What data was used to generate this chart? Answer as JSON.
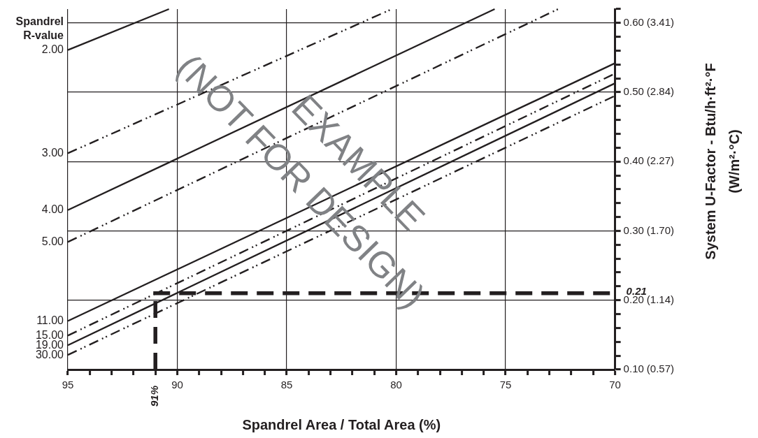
{
  "chart_data": {
    "type": "line",
    "xlabel": "Spandrel Area / Total Area (%)",
    "y2label": "System U-Factor - Btu/h·ft²·°F\n(W/m²·°C)",
    "legend_title": "Spandrel\nR-value",
    "xlim": [
      95,
      70
    ],
    "xticks": [
      95,
      {
        "value": 94,
        "label": null
      },
      {
        "value": 93,
        "label": null
      },
      {
        "value": 92,
        "label": null
      },
      {
        "value": 91,
        "label": null
      },
      90,
      {
        "value": 89,
        "label": null
      },
      {
        "value": 88,
        "label": null
      },
      {
        "value": 87,
        "label": null
      },
      {
        "value": 86,
        "label": null
      },
      85,
      {
        "value": 84,
        "label": null
      },
      {
        "value": 83,
        "label": null
      },
      {
        "value": 82,
        "label": null
      },
      {
        "value": 81,
        "label": null
      },
      80,
      {
        "value": 79,
        "label": null
      },
      {
        "value": 78,
        "label": null
      },
      {
        "value": 77,
        "label": null
      },
      {
        "value": 76,
        "label": null
      },
      75,
      {
        "value": 74,
        "label": null
      },
      {
        "value": 73,
        "label": null
      },
      {
        "value": 72,
        "label": null
      },
      {
        "value": 71,
        "label": null
      },
      70
    ],
    "ylim": [
      0.1,
      0.62
    ],
    "yticks": [
      {
        "value": 0.1,
        "label": "0.10"
      },
      {
        "value": 0.12,
        "label": null
      },
      {
        "value": 0.14,
        "label": null
      },
      {
        "value": 0.16,
        "label": null
      },
      {
        "value": 0.18,
        "label": null
      },
      {
        "value": 0.2,
        "label": "0.20"
      },
      {
        "value": 0.22,
        "label": null
      },
      {
        "value": 0.24,
        "label": null
      },
      {
        "value": 0.26,
        "label": null
      },
      {
        "value": 0.28,
        "label": null
      },
      {
        "value": 0.3,
        "label": "0.30"
      },
      {
        "value": 0.32,
        "label": null
      },
      {
        "value": 0.34,
        "label": null
      },
      {
        "value": 0.36,
        "label": null
      },
      {
        "value": 0.38,
        "label": null
      },
      {
        "value": 0.4,
        "label": "0.40"
      },
      {
        "value": 0.42,
        "label": null
      },
      {
        "value": 0.44,
        "label": null
      },
      {
        "value": 0.46,
        "label": null
      },
      {
        "value": 0.48,
        "label": null
      },
      {
        "value": 0.5,
        "label": "0.50"
      },
      {
        "value": 0.52,
        "label": null
      },
      {
        "value": 0.54,
        "label": null
      },
      {
        "value": 0.56,
        "label": null
      },
      {
        "value": 0.58,
        "label": null
      },
      {
        "value": 0.6,
        "label": "0.60"
      },
      {
        "value": 0.62,
        "label": null
      }
    ],
    "y2lim": [
      0.568,
      3.52
    ],
    "y2ticks": [
      {
        "value": 0.568,
        "label": "(0.57)"
      },
      {
        "value": 1.136,
        "label": "(1.14)"
      },
      {
        "value": 1.703,
        "label": "(1.70)"
      },
      {
        "value": 2.271,
        "label": "(2.27)"
      },
      {
        "value": 2.839,
        "label": "(2.84)"
      },
      {
        "value": 3.407,
        "label": "(3.41)"
      }
    ],
    "grid": true,
    "marker": "none",
    "series": [
      {
        "name": "2.00",
        "color": "#231f20",
        "line_style": "solid",
        "x": [
          95,
          90.38
        ],
        "values": [
          0.561,
          0.62
        ]
      },
      {
        "name": "3.00",
        "color": "#231f20",
        "line_style": "dashdotdot",
        "x": [
          95,
          80.2
        ],
        "values": [
          0.412,
          0.62
        ]
      },
      {
        "name": "4.00",
        "color": "#231f20",
        "line_style": "solid",
        "x": [
          95,
          75.5
        ],
        "values": [
          0.33,
          0.62
        ]
      },
      {
        "name": "5.00",
        "color": "#231f20",
        "line_style": "dashdotdot",
        "x": [
          95,
          72.6
        ],
        "values": [
          0.284,
          0.62
        ]
      },
      {
        "name": "11.00",
        "color": "#231f20",
        "line_style": "solid",
        "x": [
          95,
          70
        ],
        "values": [
          0.17,
          0.542
        ]
      },
      {
        "name": "15.00",
        "color": "#231f20",
        "line_style": "dashdotdot",
        "x": [
          95,
          70
        ],
        "values": [
          0.149,
          0.527
        ]
      },
      {
        "name": "19.00",
        "color": "#231f20",
        "line_style": "solid",
        "x": [
          95,
          70
        ],
        "values": [
          0.135,
          0.513
        ]
      },
      {
        "name": "30.00",
        "color": "#231f20",
        "line_style": "dashdotdot",
        "x": [
          95,
          70
        ],
        "values": [
          0.121,
          0.495
        ]
      }
    ],
    "ref_lines": [
      {
        "axis": "x",
        "value": 91,
        "label": "91%",
        "color": "#231f20",
        "line_style": "dashed"
      },
      {
        "axis": "y",
        "value": 0.21,
        "label": "0.21",
        "color": "#231f20",
        "line_style": "dashed"
      }
    ],
    "annotations": [
      "EXAMPLE",
      "(NOT FOR DESIGN)"
    ]
  }
}
